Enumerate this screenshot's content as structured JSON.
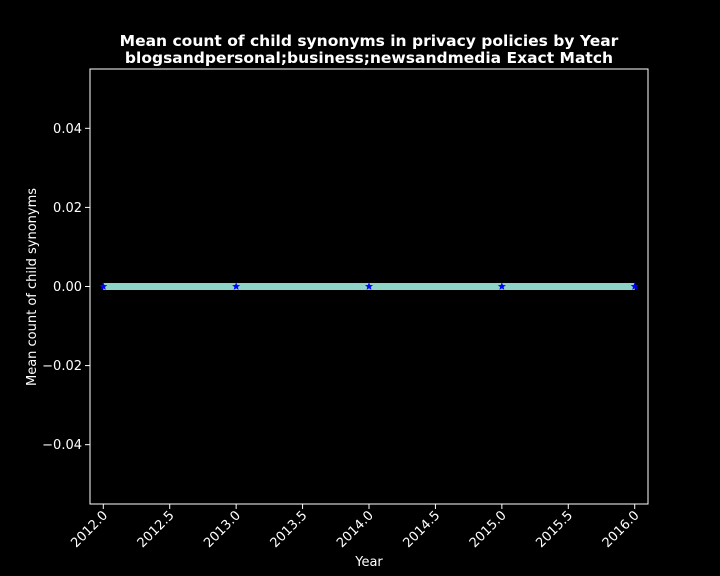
{
  "chart_data": {
    "type": "line",
    "title": "Mean count of child synonyms in privacy policies by Year",
    "subtitle": "blogsandpersonal;business;newsandmedia Exact Match",
    "xlabel": "Year",
    "ylabel": "Mean count of child synonyms",
    "x": [
      2012,
      2013,
      2014,
      2015,
      2016
    ],
    "series": [
      {
        "values": [
          0,
          0,
          0,
          0,
          0
        ],
        "line_color": "#8dd3c7",
        "marker": "star",
        "marker_color": "#0000ff"
      }
    ],
    "xlim": [
      2011.9,
      2016.1
    ],
    "ylim": [
      -0.055,
      0.055
    ],
    "xticks": [
      "2012.0",
      "2012.5",
      "2013.0",
      "2013.5",
      "2014.0",
      "2014.5",
      "2015.0",
      "2015.5",
      "2016.0"
    ],
    "yticks": [
      "0.04",
      "0.02",
      "0.00",
      "−0.02",
      "−0.04"
    ],
    "xtick_values": [
      2012.0,
      2012.5,
      2013.0,
      2013.5,
      2014.0,
      2014.5,
      2015.0,
      2015.5,
      2016.0
    ],
    "ytick_values": [
      0.04,
      0.02,
      0.0,
      -0.02,
      -0.04
    ],
    "grid": false,
    "background": "#000000",
    "foreground": "#ffffff"
  }
}
